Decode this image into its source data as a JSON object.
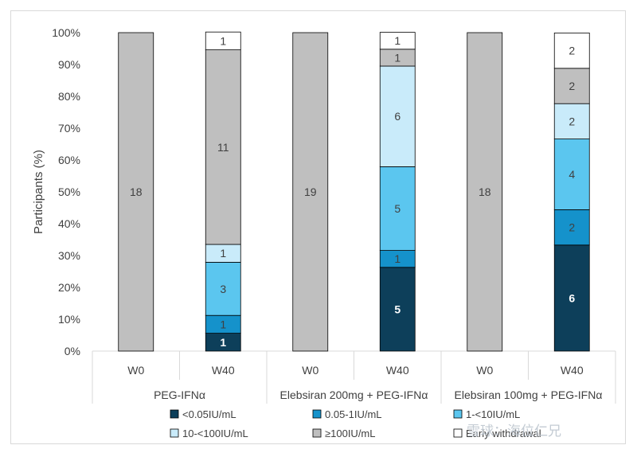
{
  "chart_data": {
    "type": "bar",
    "stacked": true,
    "ylabel": "Participants (%)",
    "ylim": [
      0,
      100
    ],
    "y_ticks": [
      "0%",
      "10%",
      "20%",
      "30%",
      "40%",
      "50%",
      "60%",
      "70%",
      "80%",
      "90%",
      "100%"
    ],
    "grid": false,
    "legend_position": "bottom",
    "groups": [
      "PEG-IFNα",
      "Elebsiran 200mg + PEG-IFNα",
      "Elebsiran 100mg + PEG-IFNα"
    ],
    "categories": [
      "W0",
      "W40",
      "W0",
      "W40",
      "W0",
      "W40"
    ],
    "series": [
      {
        "name": "<0.05IU/mL",
        "color": "#0d3f5a",
        "values": [
          0,
          5.6,
          0,
          26.3,
          0,
          33.3
        ],
        "labels": [
          "",
          "1",
          "",
          "5",
          "",
          "6"
        ]
      },
      {
        "name": "0.05-1IU/mL",
        "color": "#1592cb",
        "values": [
          0,
          5.6,
          0,
          5.3,
          0,
          11.1
        ],
        "labels": [
          "",
          "1",
          "",
          "1",
          "",
          "2"
        ]
      },
      {
        "name": "1-<10IU/mL",
        "color": "#5bc6ef",
        "values": [
          0,
          16.7,
          0,
          26.3,
          0,
          22.2
        ],
        "labels": [
          "",
          "3",
          "",
          "5",
          "",
          "4"
        ]
      },
      {
        "name": "10-<100IU/mL",
        "color": "#c9ebfa",
        "values": [
          0,
          5.6,
          0,
          31.6,
          0,
          11.1
        ],
        "labels": [
          "",
          "1",
          "",
          "6",
          "",
          "2"
        ]
      },
      {
        "name": "≥100IU/mL",
        "color": "#bfbfbf",
        "values": [
          100,
          61.1,
          100,
          5.3,
          100,
          11.1
        ],
        "labels": [
          "18",
          "11",
          "19",
          "1",
          "18",
          "2"
        ]
      },
      {
        "name": "Early withdrawal",
        "color": "#ffffff",
        "values": [
          0,
          5.6,
          0,
          5.3,
          0,
          11.1
        ],
        "labels": [
          "",
          "1",
          "",
          "1",
          "",
          "2"
        ]
      }
    ]
  },
  "watermark": "雪球：海位仁兄"
}
